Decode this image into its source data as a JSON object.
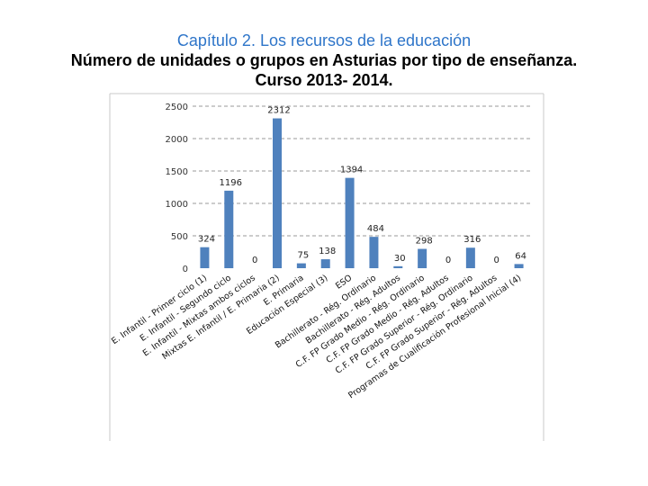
{
  "header": {
    "chapter": "Capítulo 2. Los recursos de la educación",
    "title_line1": "Número de unidades o grupos en Asturias por tipo de enseñanza.",
    "title_line2": "Curso 2013- 2014."
  },
  "colors": {
    "bar": "#4f81bd",
    "grid": "#9a9a9a",
    "frame": "#c8c8c8"
  },
  "chart_data": {
    "type": "bar",
    "title": "Número de unidades o grupos en Asturias por tipo de enseñanza. Curso 2013- 2014.",
    "xlabel": "",
    "ylabel": "",
    "ylim": [
      0,
      2500
    ],
    "yticks": [
      0,
      500,
      1000,
      1500,
      2000,
      2500
    ],
    "grid": true,
    "categories": [
      "E. Infantil - Primer ciclo (1)",
      "E. Infantil - Segundo ciclo",
      "E. Infantil - Mixtas ambos ciclos",
      "Mixtas E. Infantil / E. Primaria (2)",
      "E. Primaria",
      "Educación Especial (3)",
      "ESO",
      "Bachillerato - Rég. Ordinario",
      "Bachillerato - Rég. Adultos",
      "C.F. FP Grado Medio - Rég. Ordinario",
      "C.F. FP Grado Medio - Rég. Adultos",
      "C.F. FP Grado Superior - Rég. Ordinario",
      "C.F. FP Grado Superior - Rég. Adultos",
      "Programas de Cualificación Profesional Inicial (4)"
    ],
    "values": [
      324,
      1196,
      0,
      2312,
      75,
      138,
      1394,
      484,
      30,
      298,
      0,
      316,
      0,
      64
    ]
  }
}
